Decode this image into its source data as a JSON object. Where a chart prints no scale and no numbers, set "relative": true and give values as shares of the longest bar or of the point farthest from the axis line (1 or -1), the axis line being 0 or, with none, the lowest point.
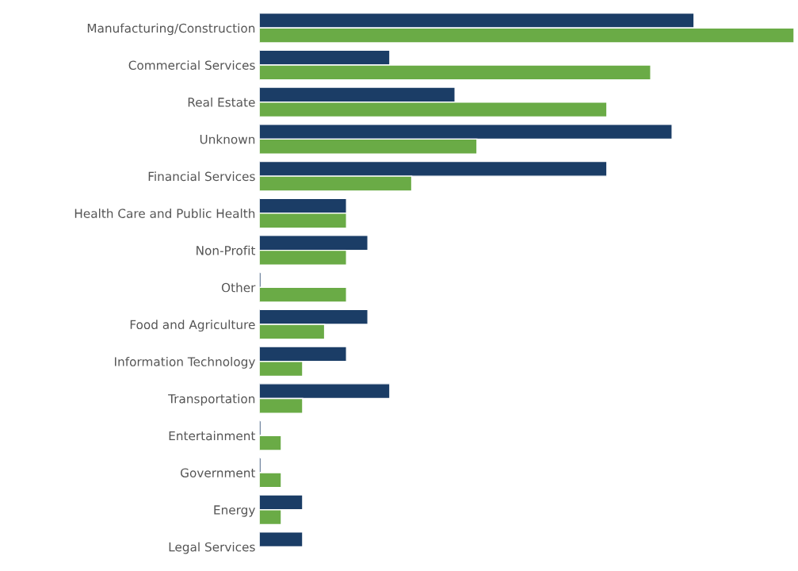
{
  "chart_data": {
    "type": "bar",
    "orientation": "horizontal",
    "relative": true,
    "legend": false,
    "grid": false,
    "categories": [
      "Manufacturing/Construction",
      "Commercial Services",
      "Real Estate",
      "Unknown",
      "Financial Services",
      "Health Care and Public Health",
      "Non-Profit",
      "Other",
      "Food and Agriculture",
      "Information Technology",
      "Transportation",
      "Entertainment",
      "Government",
      "Energy",
      "Legal Services"
    ],
    "series": [
      {
        "color": "#1b3d66",
        "values": [
          0.813,
          0.244,
          0.366,
          0.772,
          0.65,
          0.163,
          0.203,
          0.003,
          0.203,
          0.163,
          0.244,
          0.003,
          0.003,
          0.081,
          0.081
        ]
      },
      {
        "color": "#6aab46",
        "values": [
          1,
          0.732,
          0.65,
          0.407,
          0.285,
          0.163,
          0.163,
          0.163,
          0.122,
          0.081,
          0.081,
          0.041,
          0.041,
          0.041,
          null
        ]
      }
    ]
  }
}
